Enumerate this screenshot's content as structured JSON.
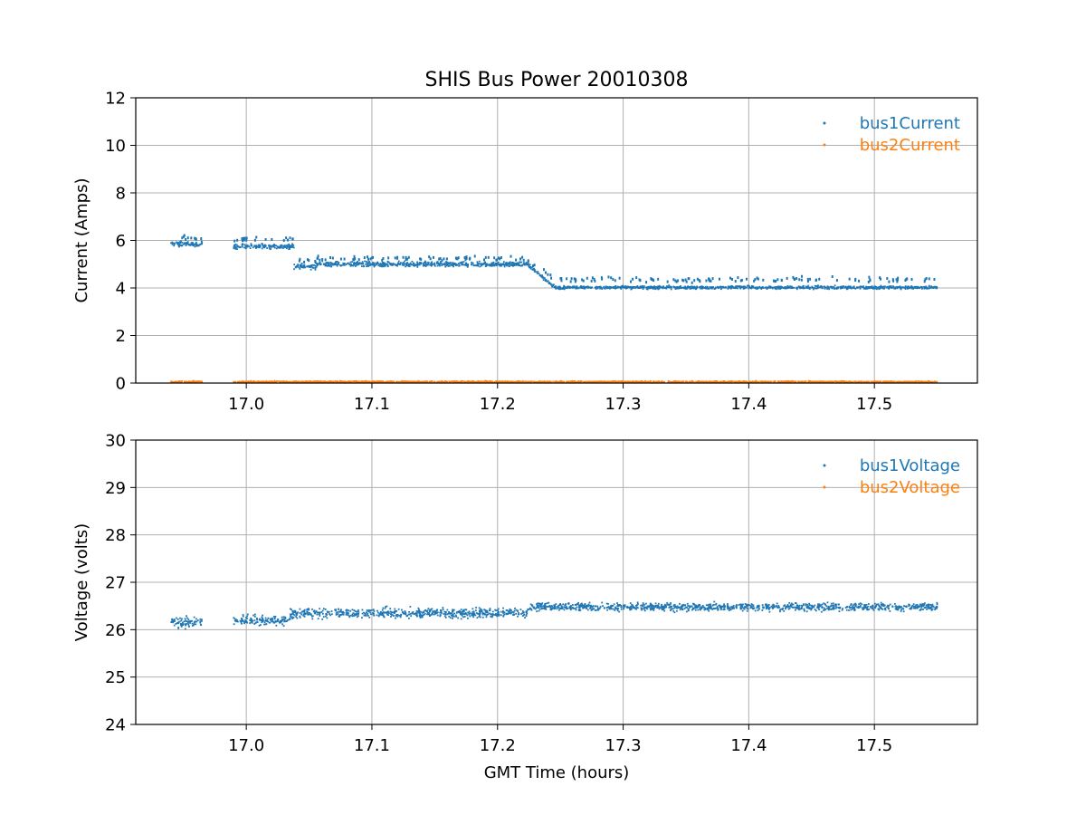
{
  "chart_data": {
    "title": "SHIS Bus Power 20010308",
    "colors": {
      "bus1": "#1f77b4",
      "bus2": "#ff7f0e"
    },
    "x_ticks": [
      "17.0",
      "17.1",
      "17.2",
      "17.3",
      "17.4",
      "17.5"
    ],
    "xlim": [
      16.912,
      17.582
    ],
    "xlabel": "GMT Time (hours)",
    "panels": [
      {
        "type": "scatter",
        "ylabel": "Current (Amps)",
        "ylim": [
          0,
          12
        ],
        "y_ticks": [
          "0",
          "2",
          "4",
          "6",
          "8",
          "10",
          "12"
        ],
        "grid": true,
        "legend_position": "top-right",
        "series": [
          {
            "name": "bus1Current",
            "color_key": "bus1",
            "segments": [
              {
                "x": [
                  16.94,
                  16.965
                ],
                "y": 5.85,
                "spread": 0.1,
                "upper_band": 6.1
              },
              {
                "x": [
                  16.99,
                  17.038
                ],
                "y": 5.75,
                "spread": 0.1,
                "upper_band": 6.05
              },
              {
                "x": [
                  17.038,
                  17.056
                ],
                "y": 4.9,
                "spread": 0.1,
                "upper_band": 5.15
              },
              {
                "x": [
                  17.056,
                  17.22
                ],
                "y": 5.0,
                "spread": 0.1,
                "upper_band": 5.25
              },
              {
                "x": [
                  17.22,
                  17.25
                ],
                "y_start": 5.0,
                "y_end": 4.0,
                "spread": 0.08,
                "upper_band": 4.3
              },
              {
                "x": [
                  17.25,
                  17.55
                ],
                "y": 4.02,
                "spread": 0.06,
                "upper_band": 4.35
              }
            ]
          },
          {
            "name": "bus2Current",
            "color_key": "bus2",
            "segments": [
              {
                "x": [
                  16.94,
                  16.965
                ],
                "y": 0.05,
                "spread": 0.03
              },
              {
                "x": [
                  16.99,
                  17.55
                ],
                "y": 0.05,
                "spread": 0.03
              }
            ]
          }
        ]
      },
      {
        "type": "scatter",
        "ylabel": "Voltage (volts)",
        "ylim": [
          24,
          30
        ],
        "y_ticks": [
          "24",
          "25",
          "26",
          "27",
          "28",
          "29",
          "30"
        ],
        "grid": true,
        "legend_position": "top-right",
        "series": [
          {
            "name": "bus1Voltage",
            "color_key": "bus1",
            "segments": [
              {
                "x": [
                  16.94,
                  16.965
                ],
                "y": 26.15,
                "spread": 0.12
              },
              {
                "x": [
                  16.99,
                  17.035
                ],
                "y": 26.2,
                "spread": 0.1
              },
              {
                "x": [
                  17.035,
                  17.225
                ],
                "y": 26.35,
                "spread": 0.1
              },
              {
                "x": [
                  17.225,
                  17.55
                ],
                "y": 26.48,
                "spread": 0.08
              }
            ]
          },
          {
            "name": "bus2Voltage",
            "color_key": "bus2",
            "segments": []
          }
        ]
      }
    ]
  }
}
